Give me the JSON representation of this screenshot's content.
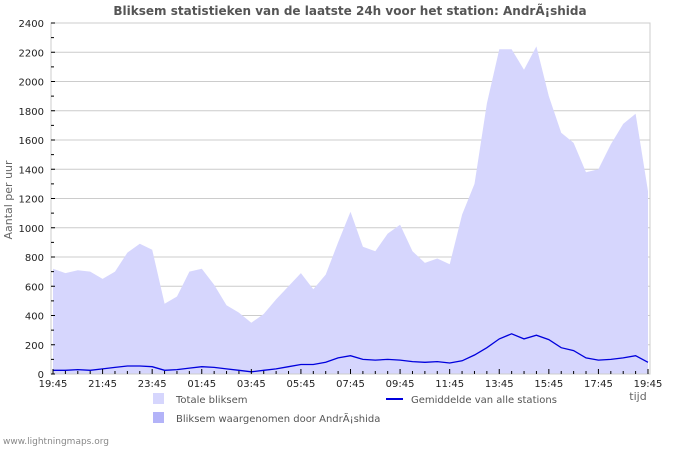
{
  "title": "Bliksem statistieken van de laatste 24h voor het station: AndrÃ¡shida",
  "footer": "www.lightningmaps.org",
  "colors": {
    "total_fill": "#d6d6fd",
    "station_fill": "#b3b3f8",
    "average_line": "#0000dd",
    "grid": "#cccccc",
    "frame": "#cccccc"
  },
  "chart_data": {
    "type": "area",
    "title": "Bliksem statistieken van de laatste 24h voor het station: AndrÃ¡shida",
    "xlabel": "tijd",
    "ylabel": "Aantal per uur",
    "ylim": [
      0,
      2400
    ],
    "yticks": [
      0,
      200,
      400,
      600,
      800,
      1000,
      1200,
      1400,
      1600,
      1800,
      2000,
      2200,
      2400
    ],
    "xtick_labels": [
      "19:45",
      "21:45",
      "23:45",
      "01:45",
      "03:45",
      "05:45",
      "07:45",
      "09:45",
      "11:45",
      "13:45",
      "15:45",
      "17:45",
      "19:45"
    ],
    "grid": true,
    "legend_position": "bottom",
    "x": [
      "19:45",
      "20:15",
      "20:45",
      "21:15",
      "21:45",
      "22:15",
      "22:45",
      "23:15",
      "23:45",
      "00:15",
      "00:45",
      "01:15",
      "01:45",
      "02:15",
      "02:45",
      "03:15",
      "03:45",
      "04:15",
      "04:45",
      "05:15",
      "05:45",
      "06:15",
      "06:45",
      "07:15",
      "07:45",
      "08:15",
      "08:45",
      "09:15",
      "09:45",
      "10:15",
      "10:45",
      "11:15",
      "11:45",
      "12:15",
      "12:45",
      "13:15",
      "13:45",
      "14:15",
      "14:45",
      "15:15",
      "15:45",
      "16:15",
      "16:45",
      "17:15",
      "17:45",
      "18:15",
      "18:45",
      "19:15",
      "19:45"
    ],
    "series": [
      {
        "name": "Totale bliksem",
        "type": "area",
        "values": [
          720,
          690,
          710,
          700,
          650,
          700,
          830,
          890,
          850,
          480,
          530,
          700,
          720,
          610,
          470,
          420,
          350,
          410,
          510,
          600,
          690,
          580,
          680,
          900,
          1110,
          870,
          840,
          960,
          1020,
          840,
          760,
          790,
          750,
          1090,
          1300,
          1850,
          2220,
          2220,
          2080,
          2240,
          1900,
          1650,
          1580,
          1380,
          1400,
          1570,
          1710,
          1780,
          1250
        ]
      },
      {
        "name": "Bliksem waargenomen door AndrÃ¡shida",
        "type": "area",
        "values": [
          0,
          0,
          0,
          0,
          0,
          0,
          0,
          0,
          0,
          0,
          0,
          0,
          0,
          0,
          0,
          0,
          0,
          0,
          0,
          0,
          0,
          0,
          0,
          0,
          0,
          0,
          0,
          0,
          0,
          0,
          0,
          0,
          0,
          0,
          0,
          0,
          0,
          0,
          0,
          0,
          0,
          0,
          0,
          0,
          0,
          0,
          0,
          0,
          0
        ]
      },
      {
        "name": "Gemiddelde van alle stations",
        "type": "line",
        "values": [
          25,
          25,
          30,
          25,
          35,
          45,
          55,
          55,
          50,
          25,
          30,
          40,
          50,
          45,
          35,
          25,
          15,
          25,
          35,
          50,
          65,
          65,
          80,
          110,
          125,
          100,
          95,
          100,
          95,
          85,
          80,
          85,
          75,
          90,
          130,
          180,
          240,
          275,
          240,
          265,
          235,
          180,
          160,
          110,
          95,
          100,
          110,
          125,
          80
        ]
      }
    ]
  },
  "legend": {
    "items": [
      {
        "label": "Totale bliksem",
        "color": "#d6d6fd"
      },
      {
        "label": "Bliksem waargenomen door AndrÃ¡shida",
        "color": "#b3b3f8"
      },
      {
        "label": "Gemiddelde van alle stations",
        "color": "#0000dd"
      }
    ]
  }
}
